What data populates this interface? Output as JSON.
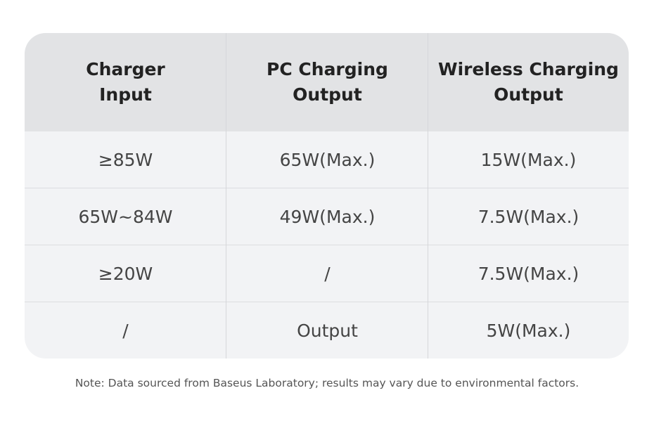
{
  "table": {
    "headers": [
      "Charger\nInput",
      "PC Charging\nOutput",
      "Wireless Charging\nOutput"
    ],
    "rows": [
      [
        "≥85W",
        "65W(Max.)",
        "15W(Max.)"
      ],
      [
        "65W~84W",
        "49W(Max.)",
        "7.5W(Max.)"
      ],
      [
        "≥20W",
        "/",
        "7.5W(Max.)"
      ],
      [
        "/",
        "Output",
        "5W(Max.)"
      ]
    ]
  },
  "footnote": "Note: Data sourced from Baseus Laboratory; results may vary due to environmental factors."
}
